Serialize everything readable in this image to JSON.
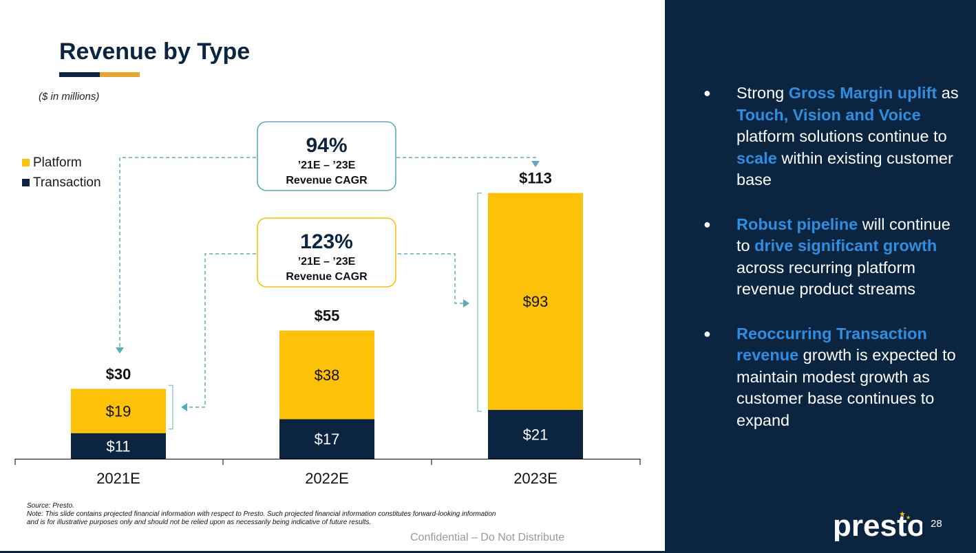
{
  "slide": {
    "title": "Revenue by Type",
    "units_note": "($ in millions)",
    "source_line": "Source: Presto.",
    "note_line": "Note: This slide contains projected financial information with respect to Presto. Such projected financial information constitutes forward-looking information and is for illustrative purposes only and should not be relied upon as necessarily being indicative of future results.",
    "confidential": "Confidential – Do Not Distribute",
    "page_number": "28",
    "logo_text": "presto"
  },
  "colors": {
    "navy": "#0b2540",
    "gold": "#fdc107",
    "teal": "#5aacbc",
    "highlight_blue": "#2f8ee0",
    "underline_gold": "#e9a62a"
  },
  "legend": [
    {
      "label": "Platform",
      "color": "#fdc107"
    },
    {
      "label": "Transaction",
      "color": "#0b2540"
    }
  ],
  "chart_data": {
    "type": "bar",
    "stacked": true,
    "categories": [
      "2021E",
      "2022E",
      "2023E"
    ],
    "series": [
      {
        "name": "Transaction",
        "values": [
          11,
          17,
          21
        ],
        "labels": [
          "$11",
          "$17",
          "$21"
        ],
        "color": "#0b2540"
      },
      {
        "name": "Platform",
        "values": [
          19,
          38,
          93
        ],
        "labels": [
          "$19",
          "$38",
          "$93"
        ],
        "color": "#fdc107"
      }
    ],
    "totals": [
      30,
      55,
      113
    ],
    "total_labels": [
      "$30",
      "$55",
      "$113"
    ],
    "legend_position": "left",
    "grid": false,
    "annotations": [
      {
        "value": "94%",
        "line1": "’21E – ’23E",
        "line2": "Revenue CAGR",
        "color": "#5aacbc"
      },
      {
        "value": "123%",
        "line1": "’21E – ’23E",
        "line2": "Revenue CAGR",
        "color": "#fdc107"
      }
    ]
  },
  "bullets": [
    {
      "parts": [
        {
          "text": "Strong ",
          "hl": false
        },
        {
          "text": "Gross Margin uplift",
          "hl": true
        },
        {
          "text": " as ",
          "hl": false
        },
        {
          "text": "Touch, Vision and Voice",
          "hl": true
        },
        {
          "text": " platform solutions continue to ",
          "hl": false
        },
        {
          "text": "scale",
          "hl": true
        },
        {
          "text": " within existing customer base",
          "hl": false
        }
      ]
    },
    {
      "parts": [
        {
          "text": "Robust pipeline",
          "hl": true
        },
        {
          "text": " will continue to ",
          "hl": false
        },
        {
          "text": "drive significant growth",
          "hl": true
        },
        {
          "text": " across recurring platform revenue product streams",
          "hl": false
        }
      ]
    },
    {
      "parts": [
        {
          "text": "Reoccurring Transaction revenue",
          "hl": true
        },
        {
          "text": " growth is expected to maintain modest growth as customer base continues to expand",
          "hl": false
        }
      ]
    }
  ]
}
